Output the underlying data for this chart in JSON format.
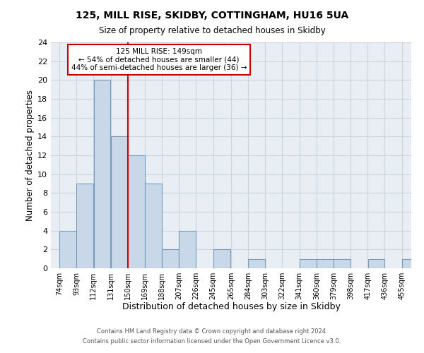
{
  "title": "125, MILL RISE, SKIDBY, COTTINGHAM, HU16 5UA",
  "subtitle": "Size of property relative to detached houses in Skidby",
  "xlabel": "Distribution of detached houses by size in Skidby",
  "ylabel": "Number of detached properties",
  "bin_labels": [
    "74sqm",
    "93sqm",
    "112sqm",
    "131sqm",
    "150sqm",
    "169sqm",
    "188sqm",
    "207sqm",
    "226sqm",
    "245sqm",
    "265sqm",
    "284sqm",
    "303sqm",
    "322sqm",
    "341sqm",
    "360sqm",
    "379sqm",
    "398sqm",
    "417sqm",
    "436sqm",
    "455sqm"
  ],
  "bin_edges": [
    74,
    93,
    112,
    131,
    150,
    169,
    188,
    207,
    226,
    245,
    265,
    284,
    303,
    322,
    341,
    360,
    379,
    398,
    417,
    436,
    455
  ],
  "bar_heights": [
    4,
    9,
    20,
    14,
    12,
    9,
    2,
    4,
    0,
    2,
    0,
    1,
    0,
    0,
    1,
    1,
    1,
    0,
    1,
    0,
    1
  ],
  "bar_color": "#c8d8e8",
  "bar_edge_color": "#7799bb",
  "vline_x": 150,
  "vline_color": "#cc0000",
  "ylim": [
    0,
    24
  ],
  "yticks": [
    0,
    2,
    4,
    6,
    8,
    10,
    12,
    14,
    16,
    18,
    20,
    22,
    24
  ],
  "annotation_text": "125 MILL RISE: 149sqm\n← 54% of detached houses are smaller (44)\n44% of semi-detached houses are larger (36) →",
  "annotation_box_color": "#ffffff",
  "annotation_box_edge_color": "#cc0000",
  "footer_text": "Contains HM Land Registry data © Crown copyright and database right 2024.\nContains public sector information licensed under the Open Government Licence v3.0.",
  "background_color": "#ffffff",
  "plot_bg_color": "#e8eef4",
  "grid_color": "#c8d4de"
}
